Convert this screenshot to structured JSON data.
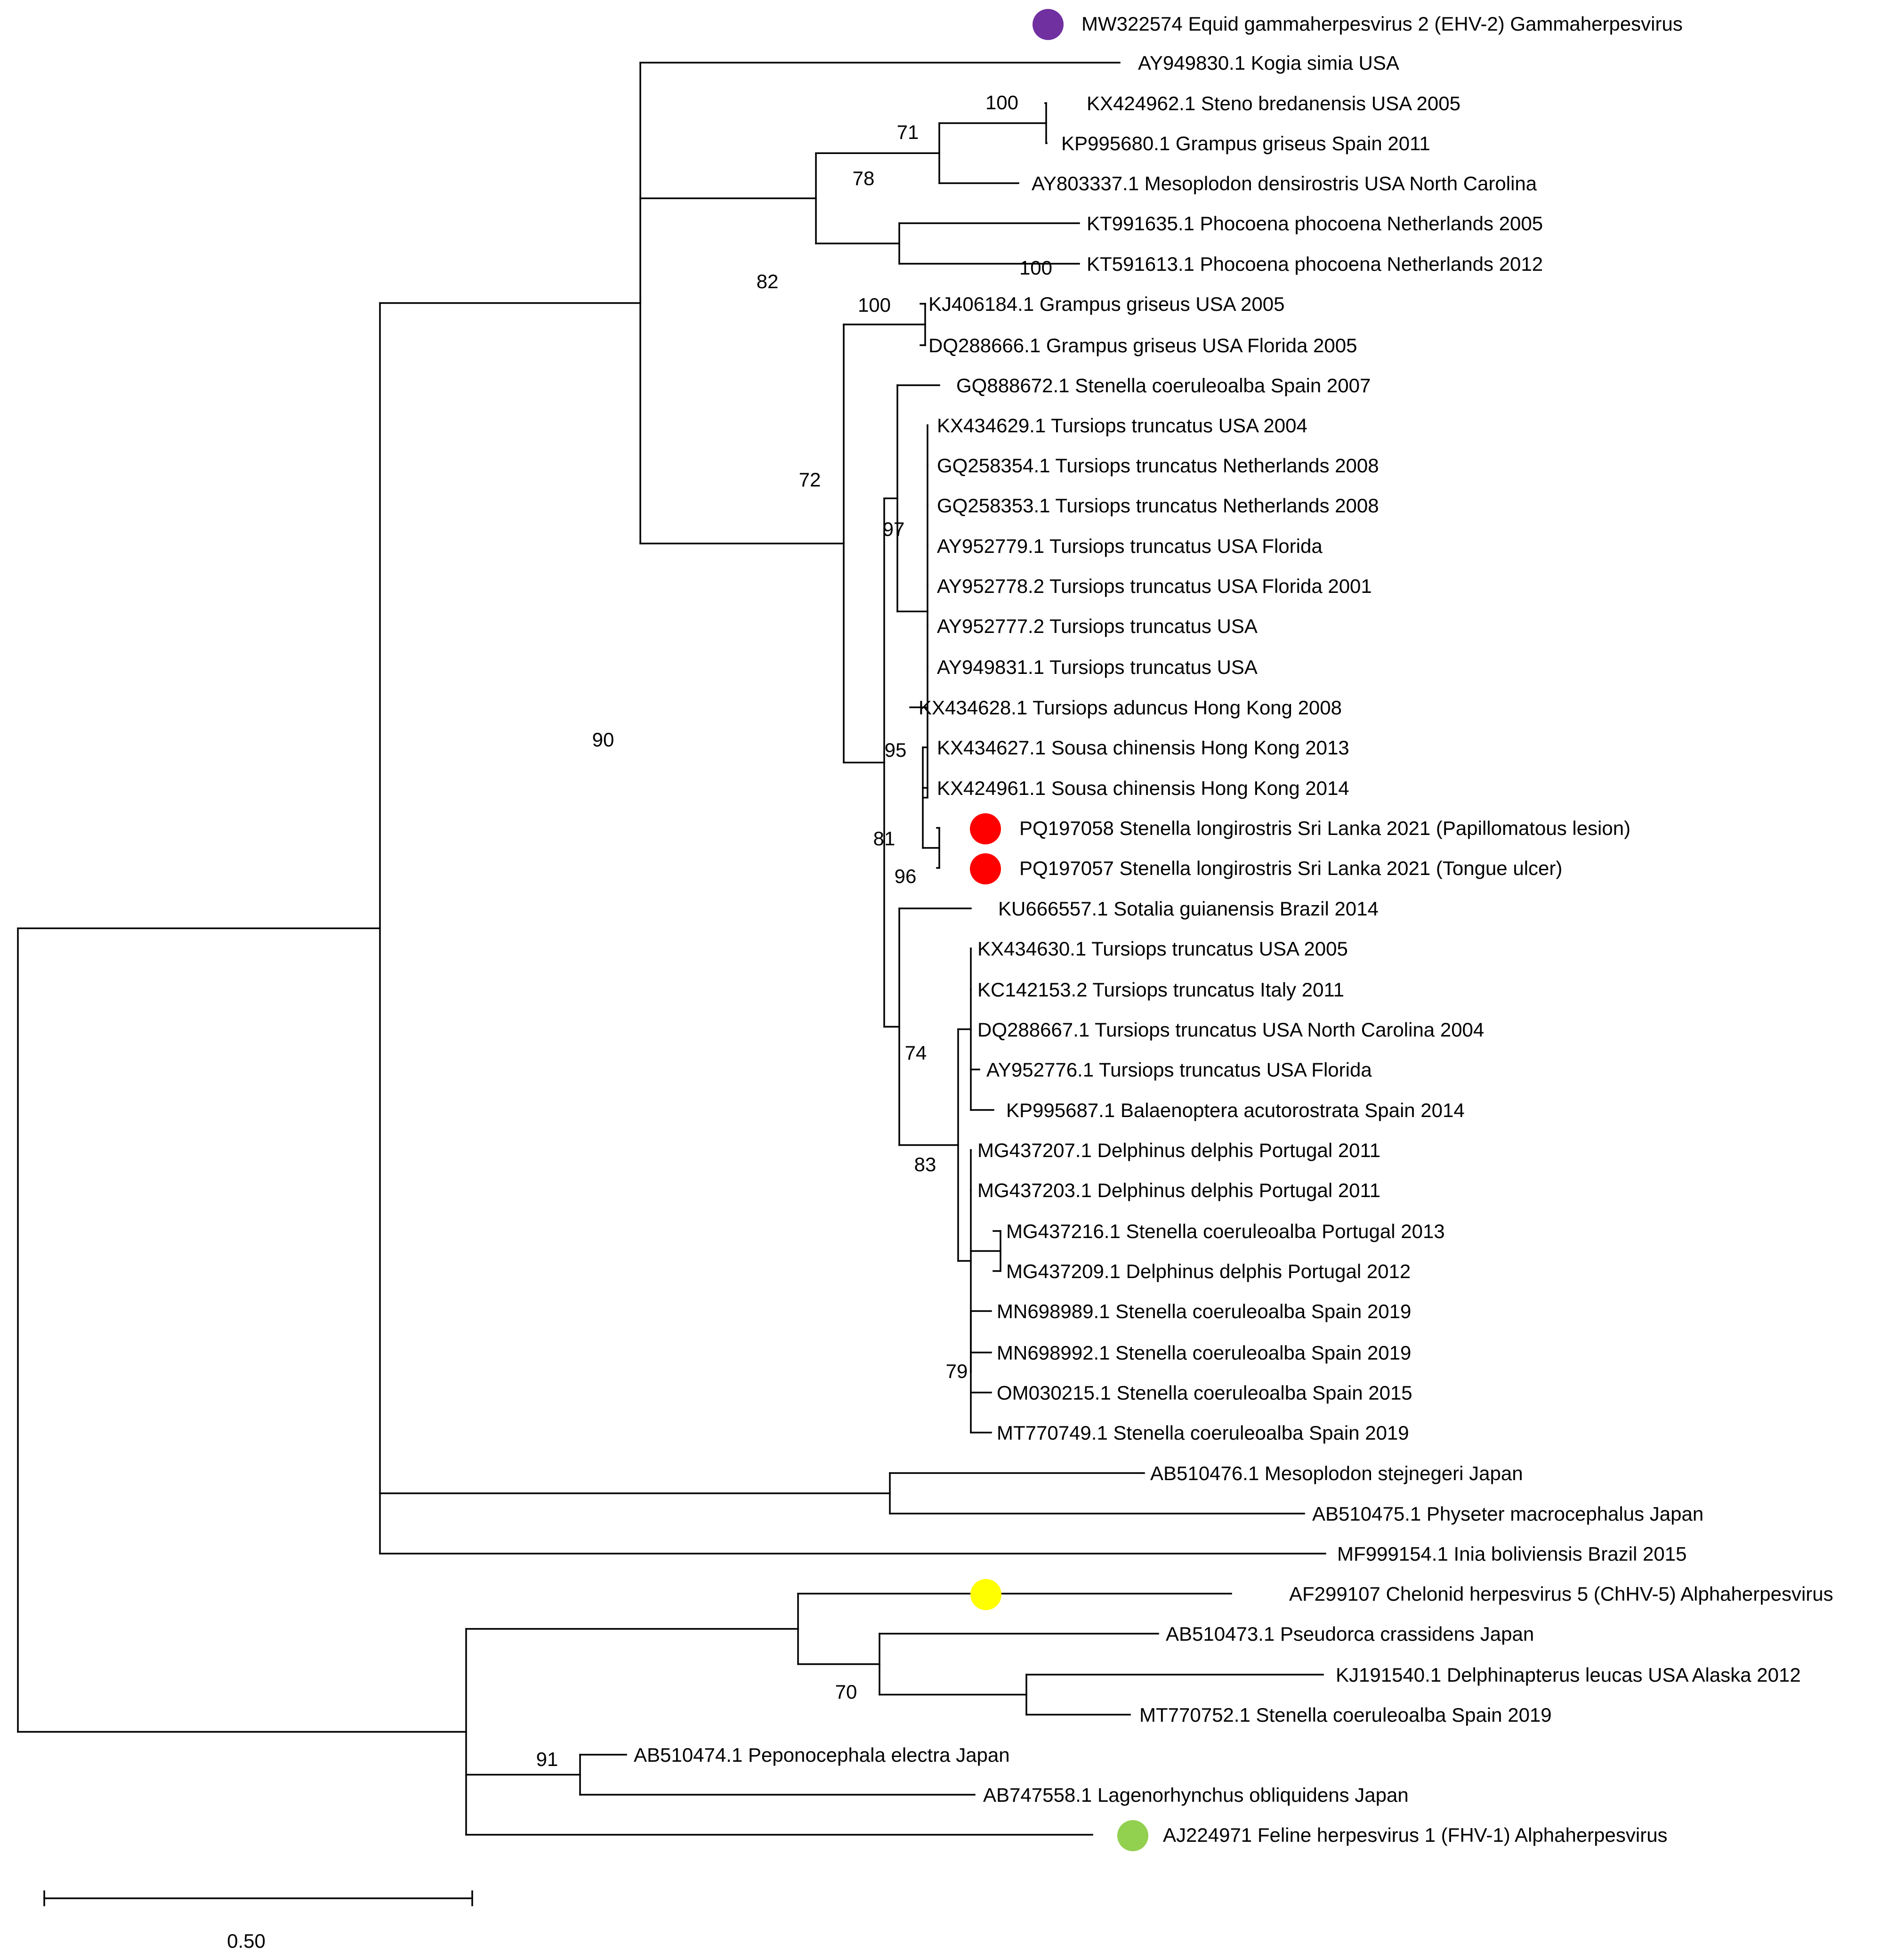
{
  "taxa": [
    "MW322574 Equid gammaherpesvirus 2 (EHV-2) Gammaherpesvirus",
    "AY949830.1 Kogia simia USA",
    "KX424962.1 Steno bredanensis USA 2005",
    "KP995680.1 Grampus griseus Spain 2011",
    "AY803337.1 Mesoplodon densirostris USA North Carolina",
    "KT991635.1 Phocoena phocoena Netherlands 2005",
    "KT591613.1 Phocoena phocoena Netherlands 2012",
    "KJ406184.1 Grampus griseus USA 2005",
    "DQ288666.1 Grampus griseus USA Florida 2005",
    "GQ888672.1 Stenella coeruleoalba Spain 2007",
    "KX434629.1 Tursiops truncatus USA 2004",
    "GQ258354.1 Tursiops truncatus Netherlands 2008",
    "GQ258353.1 Tursiops truncatus Netherlands 2008",
    "AY952779.1 Tursiops truncatus USA Florida",
    "AY952778.2 Tursiops truncatus USA Florida 2001",
    "AY952777.2 Tursiops truncatus USA",
    "AY949831.1 Tursiops truncatus USA",
    "KX434628.1 Tursiops aduncus Hong Kong 2008",
    "KX434627.1 Sousa chinensis Hong Kong 2013",
    "KX424961.1 Sousa chinensis Hong Kong 2014",
    "PQ197058 Stenella longirostris Sri Lanka 2021 (Papillomatous lesion)",
    "PQ197057 Stenella longirostris Sri Lanka 2021 (Tongue ulcer)",
    "KU666557.1 Sotalia guianensis Brazil 2014",
    "KX434630.1 Tursiops truncatus USA 2005",
    "KC142153.2 Tursiops truncatus Italy 2011",
    "DQ288667.1 Tursiops truncatus USA North Carolina 2004",
    "AY952776.1 Tursiops truncatus USA Florida",
    "KP995687.1 Balaenoptera acutorostrata Spain 2014",
    "MG437207.1 Delphinus delphis Portugal 2011",
    "MG437203.1 Delphinus delphis Portugal 2011",
    "MG437216.1 Stenella coeruleoalba Portugal 2013",
    "MG437209.1 Delphinus delphis Portugal 2012",
    "MN698989.1 Stenella coeruleoalba Spain 2019",
    "MN698992.1 Stenella coeruleoalba Spain 2019",
    "OM030215.1 Stenella coeruleoalba Spain 2015",
    "MT770749.1 Stenella coeruleoalba Spain 2019",
    "AB510476.1 Mesoplodon stejnegeri Japan",
    "AB510475.1 Physeter macrocephalus Japan",
    "MF999154.1 Inia boliviensis Brazil 2015",
    "AF299107 Chelonid herpesvirus 5 (ChHV-5) Alphaherpesvirus",
    "AB510473.1 Pseudorca crassidens Japan",
    "KJ191540.1 Delphinapterus leucas USA Alaska 2012",
    "MT770752.1 Stenella coeruleoalba Spain 2019",
    "AB510474.1 Peponocephala electra Japan",
    "AB747558.1 Lagenorhynchus obliquidens Japan",
    "AJ224971 Feline herpesvirus 1 (FHV-1) Alphaherpesvirus"
  ],
  "bootstrap": [
    "100",
    "71",
    "78",
    "100",
    "82",
    "100",
    "72",
    "97",
    "95",
    "81",
    "96",
    "74",
    "83",
    "79",
    "90",
    "70",
    "91"
  ],
  "markers": [
    {
      "taxon": "MW322574 Equid gammaherpesvirus 2 (EHV-2) Gammaherpesvirus",
      "color": "#7030a0"
    },
    {
      "taxon": "PQ197058 Stenella longirostris Sri Lanka 2021 (Papillomatous lesion)",
      "color": "#ff0000"
    },
    {
      "taxon": "PQ197057 Stenella longirostris Sri Lanka 2021 (Tongue ulcer)",
      "color": "#ff0000"
    },
    {
      "taxon": "AF299107 Chelonid herpesvirus 5 (ChHV-5) Alphaherpesvirus",
      "color": "#ffff00"
    },
    {
      "taxon": "AJ224971 Feline herpesvirus 1 (FHV-1) Alphaherpesvirus",
      "color": "#92d050"
    }
  ],
  "scale_bar": {
    "label": "0.50",
    "value": 0.5
  }
}
